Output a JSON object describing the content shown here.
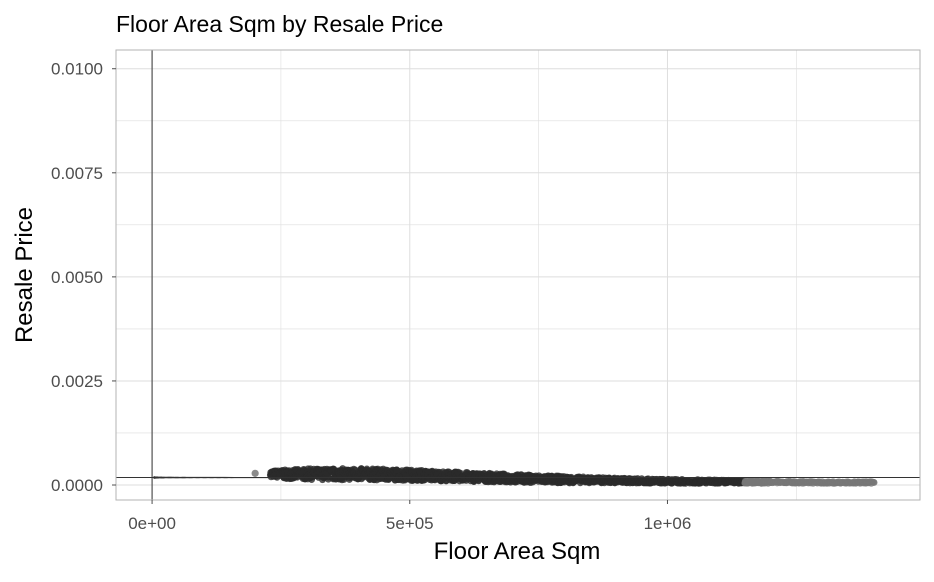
{
  "chart_data": {
    "type": "scatter",
    "title": "Floor Area Sqm by Resale Price",
    "xlabel": "Floor Area Sqm",
    "ylabel": "Resale Price",
    "xlim": [
      -70000,
      1490000
    ],
    "ylim": [
      -0.00036,
      0.01045
    ],
    "x_ticks": [
      {
        "value": 0,
        "label": "0e+00"
      },
      {
        "value": 500000,
        "label": "5e+05"
      },
      {
        "value": 1000000,
        "label": "1e+06"
      }
    ],
    "y_ticks": [
      {
        "value": 0.0,
        "label": "0.0000"
      },
      {
        "value": 0.0025,
        "label": "0.0025"
      },
      {
        "value": 0.005,
        "label": "0.0050"
      },
      {
        "value": 0.0075,
        "label": "0.0075"
      },
      {
        "value": 0.01,
        "label": "0.0100"
      }
    ],
    "reference_lines": {
      "vertical_x": 0,
      "horizontal_y": 0.00018
    },
    "point_band": {
      "description_free": true,
      "x_range": [
        200000,
        1400000
      ],
      "center": [
        [
          200000,
          0.00028
        ],
        [
          250000,
          0.00026
        ],
        [
          300000,
          0.00026
        ],
        [
          400000,
          0.00026
        ],
        [
          500000,
          0.00024
        ],
        [
          600000,
          0.0002
        ],
        [
          700000,
          0.00016
        ],
        [
          800000,
          0.00013
        ],
        [
          900000,
          0.00011
        ],
        [
          1000000,
          9e-05
        ],
        [
          1100000,
          8e-05
        ],
        [
          1200000,
          7e-05
        ],
        [
          1300000,
          6e-05
        ],
        [
          1400000,
          6e-05
        ]
      ],
      "half_width": [
        [
          200000,
          3e-05
        ],
        [
          250000,
          0.0001
        ],
        [
          300000,
          0.00013
        ],
        [
          400000,
          0.00014
        ],
        [
          500000,
          0.00013
        ],
        [
          600000,
          0.00011
        ],
        [
          700000,
          0.0001
        ],
        [
          800000,
          8e-05
        ],
        [
          900000,
          6e-05
        ],
        [
          1000000,
          5e-05
        ],
        [
          1100000,
          4e-05
        ],
        [
          1200000,
          3e-05
        ],
        [
          1300000,
          2e-05
        ],
        [
          1400000,
          2e-05
        ]
      ]
    },
    "funnel_limits": {
      "center_y": 0.00018,
      "k_outer": 4e-05,
      "k_inner": 2.7e-05
    },
    "colors": {
      "points": "#2b2b2b",
      "points_light": "#777777",
      "grid": "#dedede",
      "axis_text": "#4d4d4d",
      "border": "#b3b3b3",
      "ref_line": "#333333"
    },
    "grid": true
  }
}
